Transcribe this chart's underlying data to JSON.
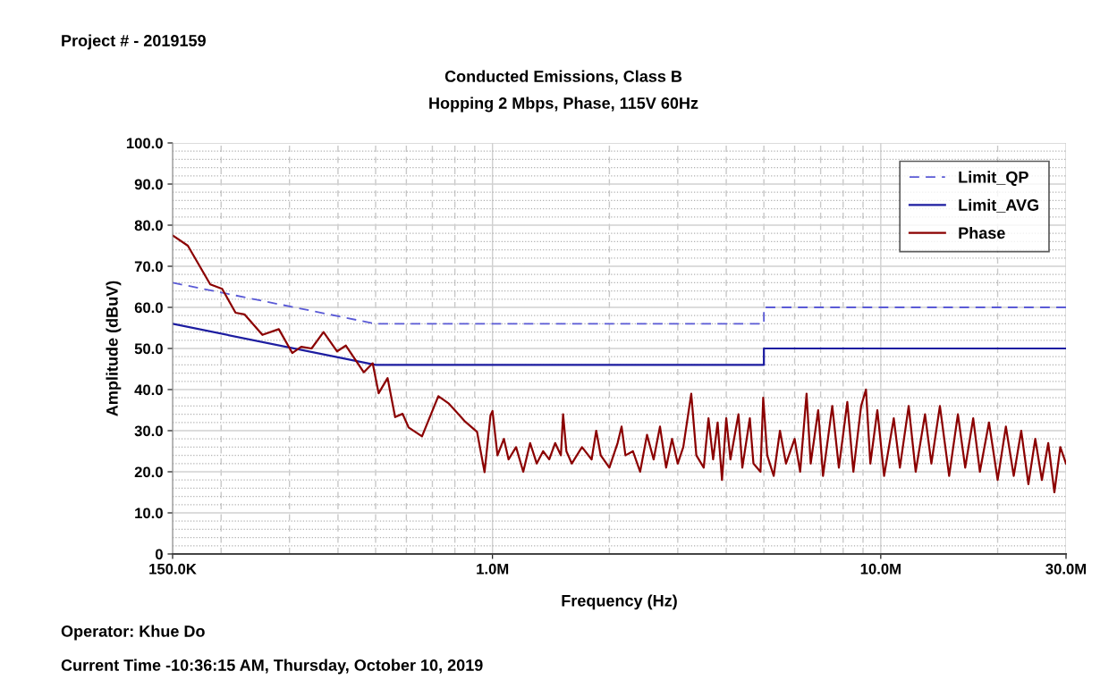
{
  "chart_data": {
    "type": "line",
    "title": "Conducted Emissions, Class B",
    "subtitle": "Hopping 2 Mbps, Phase, 115V 60Hz",
    "xlabel": "Frequency (Hz)",
    "ylabel": "Amplitude (dBuV)",
    "annotations": [
      "Project # - 2019159",
      "Operator: Khue Do",
      "Current Time -10:36:15 AM, Thursday, October 10, 2019"
    ],
    "log": "x",
    "grid": true,
    "legend": "top right",
    "xlim": [
      150000,
      30000000
    ],
    "xticks": [
      {
        "value": 150000,
        "label": "150.0K"
      },
      {
        "value": 1000000,
        "label": "1.0M"
      },
      {
        "value": 10000000,
        "label": "10.0M"
      },
      {
        "value": 30000000,
        "label": "30.0M"
      }
    ],
    "ylim": [
      0,
      100
    ],
    "yticks": [
      0,
      {
        "value": 10,
        "label": "10.0"
      },
      {
        "value": 20,
        "label": "20.0"
      },
      {
        "value": 30,
        "label": "30.0"
      },
      {
        "value": 40,
        "label": "40.0"
      },
      {
        "value": 50,
        "label": "50.0"
      },
      {
        "value": 60,
        "label": "60.0"
      },
      {
        "value": 70,
        "label": "70.0"
      },
      {
        "value": 80,
        "label": "80.0"
      },
      {
        "value": 90,
        "label": "90.0"
      },
      {
        "value": 100,
        "label": "100.0"
      }
    ],
    "series": [
      {
        "name": "Limit_QP",
        "color": "#5a5ad6",
        "line_style": "dashed",
        "x": [
          150000,
          500000,
          5000000,
          5000000,
          30000000
        ],
        "values": [
          66,
          56,
          56,
          60,
          60
        ]
      },
      {
        "name": "Limit_AVG",
        "color": "#1c1ca0",
        "line_style": "solid",
        "x": [
          150000,
          500000,
          5000000,
          5000000,
          30000000
        ],
        "values": [
          56,
          46,
          46,
          50,
          50
        ]
      },
      {
        "name": "Phase",
        "color": "#8b0000",
        "line_style": "solid",
        "x": [
          150000,
          164200,
          187500,
          201200,
          217900,
          229700,
          255500,
          281600,
          305000,
          321600,
          342000,
          367100,
          397600,
          419200,
          466100,
          491400,
          509000,
          536800,
          561300,
          586700,
          607900,
          658300,
          725300,
          771800,
          850500,
          912600,
          954000,
          988100,
          1000000,
          1030000,
          1070000,
          1100000,
          1150000,
          1200000,
          1250000,
          1300000,
          1350000,
          1400000,
          1450000,
          1500000,
          1520000,
          1550000,
          1600000,
          1700000,
          1800000,
          1850000,
          1900000,
          2000000,
          2100000,
          2150000,
          2200000,
          2300000,
          2400000,
          2500000,
          2600000,
          2700000,
          2800000,
          2900000,
          3000000,
          3100000,
          3250000,
          3350000,
          3500000,
          3600000,
          3700000,
          3800000,
          3900000,
          4000000,
          4100000,
          4300000,
          4400000,
          4600000,
          4700000,
          4900000,
          4980000,
          5100000,
          5300000,
          5500000,
          5700000,
          6000000,
          6200000,
          6440000,
          6600000,
          6900000,
          7100000,
          7500000,
          7800000,
          8200000,
          8500000,
          8900000,
          9160000,
          9400000,
          9800000,
          10200000,
          10800000,
          11200000,
          11800000,
          12300000,
          13000000,
          13500000,
          14200000,
          15000000,
          15800000,
          16500000,
          17300000,
          18000000,
          19000000,
          20000000,
          21000000,
          22000000,
          23000000,
          24000000,
          25000000,
          26000000,
          27000000,
          28000000,
          29000000,
          30000000
        ],
        "values": [
          77.5,
          75.0,
          65.6,
          64.5,
          58.7,
          58.3,
          53.3,
          54.7,
          48.9,
          50.4,
          50.0,
          54.0,
          49.3,
          50.7,
          44.2,
          46.4,
          39.1,
          42.8,
          33.3,
          34.1,
          30.8,
          28.6,
          38.4,
          36.6,
          32.2,
          29.7,
          19.9,
          33.7,
          34.8,
          24,
          28,
          23,
          26,
          20,
          27,
          22,
          25,
          23,
          27,
          24,
          34,
          25,
          22,
          26,
          23,
          30,
          24,
          21,
          27,
          31,
          24,
          25,
          20,
          29,
          23,
          31,
          21,
          28,
          22,
          26,
          39,
          24,
          21,
          33,
          23,
          32,
          18,
          33,
          23,
          34,
          21,
          33,
          22,
          20,
          38,
          24,
          19,
          30,
          22,
          28,
          20,
          39,
          22,
          35,
          19,
          36,
          21,
          37,
          20,
          36,
          40,
          22,
          35,
          19,
          33,
          21,
          36,
          20,
          34,
          22,
          36,
          19,
          34,
          21,
          33,
          20,
          32,
          18,
          31,
          19,
          30,
          17,
          28,
          18,
          27,
          15,
          26,
          22
        ]
      }
    ]
  }
}
